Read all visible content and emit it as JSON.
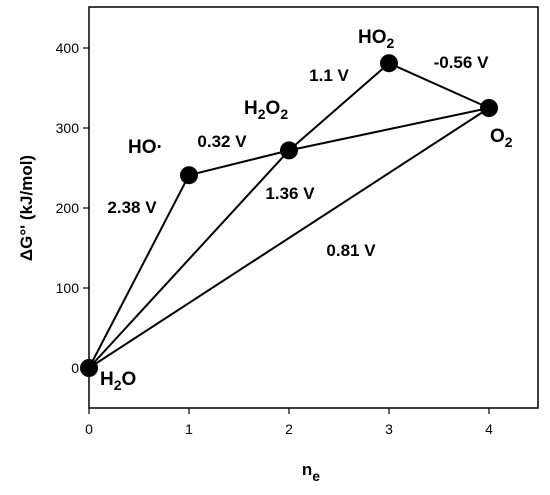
{
  "chart_data": {
    "type": "scatter",
    "xlabel": "n",
    "xlabel_subscript": "e",
    "ylabel": "ΔG°' (kJ/mol)",
    "xlim": [
      0,
      4.5
    ],
    "ylim": [
      -55,
      445
    ],
    "xticks": [
      "0",
      "1",
      "2",
      "3",
      "4"
    ],
    "yticks": [
      "0",
      "100",
      "200",
      "300",
      "400"
    ],
    "grid": false,
    "points": [
      {
        "species": "H2O",
        "base": "H",
        "sub": "2",
        "tail": "O",
        "x": 0,
        "y": 0
      },
      {
        "species": "HO·",
        "base": "HO·",
        "sub": "",
        "tail": "",
        "x": 1,
        "y": 241
      },
      {
        "species": "H2O2",
        "base": "H",
        "sub": "2",
        "tail": "O",
        "sub2": "2",
        "x": 2,
        "y": 272
      },
      {
        "species": "HO2",
        "base": "HO",
        "sub": "2",
        "tail": "",
        "x": 3,
        "y": 381
      },
      {
        "species": "O2",
        "base": "O",
        "sub": "2",
        "tail": "",
        "x": 4,
        "y": 325
      }
    ],
    "segments": [
      {
        "from": "H2O",
        "to": "HO·",
        "potential": "2.38 V"
      },
      {
        "from": "HO·",
        "to": "H2O2",
        "potential": "0.32 V"
      },
      {
        "from": "H2O",
        "to": "H2O2",
        "potential": "1.36 V"
      },
      {
        "from": "H2O2",
        "to": "HO2",
        "potential": "1.1 V"
      },
      {
        "from": "HO2",
        "to": "O2",
        "potential": "-0.56 V"
      },
      {
        "from": "H2O2",
        "to": "O2",
        "potential": ""
      },
      {
        "from": "H2O",
        "to": "O2",
        "potential": "0.81 V"
      }
    ]
  }
}
